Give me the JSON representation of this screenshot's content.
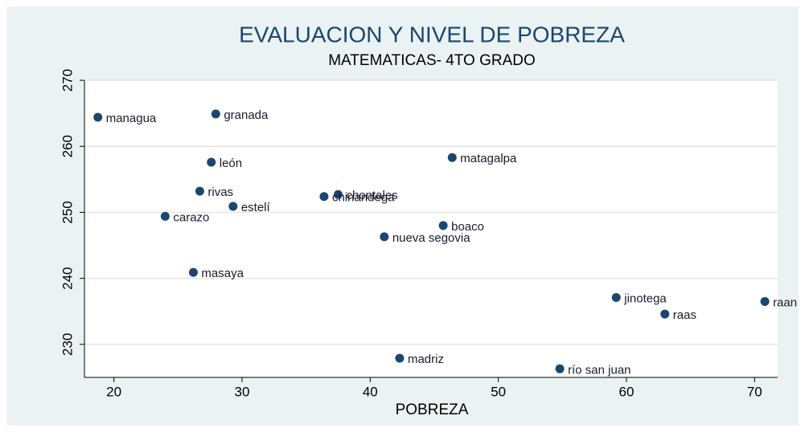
{
  "chart_data": {
    "type": "scatter",
    "title": "EVALUACION Y NIVEL DE POBREZA",
    "subtitle": "MATEMATICAS- 4TO GRADO",
    "x_label": "POBREZA",
    "color": "#1a476f",
    "grid": true,
    "xlim": [
      17.7,
      71.8
    ],
    "xticks": [
      20,
      30,
      40,
      50,
      60,
      70
    ],
    "ylim": [
      225,
      270
    ],
    "yticks": [
      230,
      240,
      250,
      260,
      270
    ],
    "labels": [
      "managua",
      "granada",
      "león",
      "matagalpa",
      "rivas",
      "chontales",
      "chinandega",
      "estelí",
      "carazo",
      "boaco",
      "nueva segovia",
      "masaya",
      "jinotega",
      "raas",
      "raan",
      "madriz",
      "río san juan"
    ],
    "x": [
      18.75,
      27.95,
      27.6,
      46.4,
      26.7,
      37.5,
      36.4,
      29.3,
      24.0,
      45.7,
      41.1,
      26.2,
      59.2,
      63.0,
      70.8,
      42.3,
      54.8
    ],
    "y": [
      264.4,
      264.9,
      257.6,
      258.3,
      253.2,
      252.7,
      252.4,
      250.9,
      249.4,
      248.0,
      246.3,
      240.9,
      237.1,
      234.6,
      236.5,
      227.9,
      226.3
    ]
  }
}
